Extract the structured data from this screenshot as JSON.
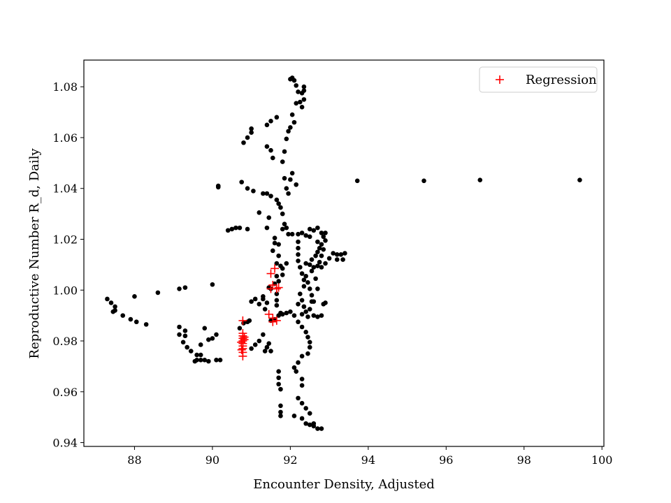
{
  "chart_data": {
    "type": "scatter",
    "title": "",
    "xlabel": "Encounter Density, Adjusted",
    "ylabel": "Reproductive Number R_d, Daily",
    "xlim": [
      86.7,
      100.05
    ],
    "ylim": [
      0.9385,
      1.0905
    ],
    "xticks": [
      88,
      90,
      92,
      94,
      96,
      98,
      100
    ],
    "yticks": [
      0.94,
      0.96,
      0.98,
      1.0,
      1.02,
      1.04,
      1.06,
      1.08
    ],
    "xtick_labels": [
      "88",
      "90",
      "92",
      "94",
      "96",
      "98",
      "100"
    ],
    "ytick_labels": [
      "0.94",
      "0.96",
      "0.98",
      "1.00",
      "1.02",
      "1.04",
      "1.06",
      "1.08"
    ],
    "grid": false,
    "legend": {
      "position": "top-right",
      "entries": [
        "Regression"
      ]
    },
    "series": [
      {
        "color": "#000000",
        "marker": "circle",
        "points": [
          [
            87.3,
            0.9965
          ],
          [
            87.4,
            0.995
          ],
          [
            87.5,
            0.9935
          ],
          [
            87.5,
            0.992
          ],
          [
            87.45,
            0.9915
          ],
          [
            87.7,
            0.99
          ],
          [
            87.9,
            0.9885
          ],
          [
            88.05,
            0.9875
          ],
          [
            88.3,
            0.9865
          ],
          [
            88.0,
            0.9975
          ],
          [
            88.6,
            0.999
          ],
          [
            89.15,
            1.0005
          ],
          [
            89.3,
            1.001
          ],
          [
            89.15,
            0.9855
          ],
          [
            89.3,
            0.984
          ],
          [
            89.15,
            0.9825
          ],
          [
            89.3,
            0.982
          ],
          [
            89.25,
            0.9795
          ],
          [
            89.35,
            0.9775
          ],
          [
            89.45,
            0.976
          ],
          [
            89.6,
            0.9745
          ],
          [
            89.7,
            0.9725
          ],
          [
            89.8,
            0.9725
          ],
          [
            89.7,
            0.9745
          ],
          [
            89.55,
            0.972
          ],
          [
            89.6,
            0.9725
          ],
          [
            89.8,
            0.985
          ],
          [
            89.9,
            0.9805
          ],
          [
            90.0,
            0.981
          ],
          [
            90.1,
            0.9825
          ],
          [
            89.7,
            0.9785
          ],
          [
            89.9,
            0.972
          ],
          [
            90.1,
            0.9725
          ],
          [
            90.2,
            0.9725
          ],
          [
            90.0,
            1.0022
          ],
          [
            90.15,
            1.041
          ],
          [
            90.15,
            1.0405
          ],
          [
            90.4,
            1.0235
          ],
          [
            90.5,
            1.024
          ],
          [
            90.6,
            1.0245
          ],
          [
            90.7,
            1.0245
          ],
          [
            90.9,
            1.024
          ],
          [
            90.75,
            1.0425
          ],
          [
            90.9,
            1.04
          ],
          [
            91.05,
            1.039
          ],
          [
            91.3,
            1.038
          ],
          [
            91.2,
            1.0305
          ],
          [
            91.4,
            1.038
          ],
          [
            91.5,
            1.037
          ],
          [
            91.45,
            1.0285
          ],
          [
            91.4,
            1.0245
          ],
          [
            90.8,
            1.058
          ],
          [
            90.9,
            1.06
          ],
          [
            91.0,
            1.062
          ],
          [
            91.0,
            1.0635
          ],
          [
            91.4,
            1.0565
          ],
          [
            91.5,
            1.055
          ],
          [
            91.55,
            1.052
          ],
          [
            91.4,
            1.065
          ],
          [
            91.5,
            1.0665
          ],
          [
            91.65,
            1.068
          ],
          [
            91.8,
            1.0505
          ],
          [
            91.85,
            1.0545
          ],
          [
            91.9,
            1.0595
          ],
          [
            91.95,
            1.0625
          ],
          [
            92.0,
            1.083
          ],
          [
            92.05,
            1.0835
          ],
          [
            92.1,
            1.0825
          ],
          [
            92.15,
            1.0805
          ],
          [
            92.2,
            1.078
          ],
          [
            92.3,
            1.0775
          ],
          [
            92.35,
            1.08
          ],
          [
            92.35,
            1.0785
          ],
          [
            92.35,
            1.075
          ],
          [
            92.3,
            1.072
          ],
          [
            92.25,
            1.074
          ],
          [
            92.15,
            1.0735
          ],
          [
            92.05,
            1.069
          ],
          [
            92.1,
            1.066
          ],
          [
            92.0,
            1.064
          ],
          [
            93.72,
            1.043
          ],
          [
            95.43,
            1.043
          ],
          [
            96.87,
            1.0433
          ],
          [
            99.43,
            1.0433
          ],
          [
            90.7,
            0.985
          ],
          [
            90.8,
            0.987
          ],
          [
            90.9,
            0.9875
          ],
          [
            90.95,
            0.988
          ],
          [
            91.0,
            0.9955
          ],
          [
            91.1,
            0.9965
          ],
          [
            91.2,
            0.9945
          ],
          [
            91.3,
            0.9975
          ],
          [
            91.35,
            0.9925
          ],
          [
            91.4,
            0.995
          ],
          [
            91.45,
            1.001
          ],
          [
            91.3,
            0.9965
          ],
          [
            91.0,
            0.977
          ],
          [
            91.1,
            0.9785
          ],
          [
            91.2,
            0.98
          ],
          [
            91.3,
            0.9825
          ],
          [
            91.35,
            0.976
          ],
          [
            91.4,
            0.9775
          ],
          [
            91.45,
            0.979
          ],
          [
            91.5,
            0.976
          ],
          [
            91.5,
            0.988
          ],
          [
            91.6,
            0.9885
          ],
          [
            91.7,
            0.99
          ],
          [
            91.75,
            0.991
          ],
          [
            91.8,
            0.9905
          ],
          [
            91.9,
            0.991
          ],
          [
            92.0,
            0.9915
          ],
          [
            92.1,
            0.99
          ],
          [
            92.2,
            0.9875
          ],
          [
            92.3,
            0.9855
          ],
          [
            92.4,
            0.9835
          ],
          [
            92.45,
            0.9815
          ],
          [
            92.5,
            0.9795
          ],
          [
            92.5,
            0.9775
          ],
          [
            92.45,
            0.975
          ],
          [
            92.3,
            0.974
          ],
          [
            92.2,
            0.9715
          ],
          [
            92.1,
            0.9695
          ],
          [
            92.15,
            0.968
          ],
          [
            91.7,
            0.968
          ],
          [
            91.7,
            0.9655
          ],
          [
            91.7,
            0.963
          ],
          [
            91.75,
            0.961
          ],
          [
            92.3,
            0.965
          ],
          [
            92.3,
            0.9625
          ],
          [
            92.2,
            0.9575
          ],
          [
            92.3,
            0.9555
          ],
          [
            92.4,
            0.9535
          ],
          [
            92.5,
            0.9515
          ],
          [
            92.6,
            0.9475
          ],
          [
            92.7,
            0.9455
          ],
          [
            92.8,
            0.9455
          ],
          [
            92.6,
            0.9465
          ],
          [
            92.5,
            0.947
          ],
          [
            92.4,
            0.9475
          ],
          [
            92.3,
            0.9495
          ],
          [
            92.1,
            0.9505
          ],
          [
            91.75,
            0.9545
          ],
          [
            91.75,
            0.952
          ],
          [
            91.75,
            0.9505
          ],
          [
            91.55,
            1.0155
          ],
          [
            91.6,
            1.0185
          ],
          [
            91.6,
            1.0205
          ],
          [
            91.7,
            1.018
          ],
          [
            91.65,
            1.0105
          ],
          [
            91.7,
            1.0135
          ],
          [
            91.65,
            1.0055
          ],
          [
            91.6,
            1.0025
          ],
          [
            91.5,
            1.0005
          ],
          [
            91.65,
            0.9985
          ],
          [
            91.65,
            0.996
          ],
          [
            91.65,
            0.994
          ],
          [
            91.7,
            1.0035
          ],
          [
            91.75,
            1.0095
          ],
          [
            91.8,
            1.0085
          ],
          [
            91.8,
            1.006
          ],
          [
            91.9,
            1.0105
          ],
          [
            91.65,
            1.0355
          ],
          [
            91.7,
            1.034
          ],
          [
            91.75,
            1.0325
          ],
          [
            91.8,
            1.03
          ],
          [
            91.85,
            1.026
          ],
          [
            91.8,
            1.024
          ],
          [
            91.9,
            1.0245
          ],
          [
            91.95,
            1.022
          ],
          [
            91.85,
            1.044
          ],
          [
            91.9,
            1.04
          ],
          [
            91.95,
            1.038
          ],
          [
            92.0,
            1.0435
          ],
          [
            92.05,
            1.046
          ],
          [
            92.15,
            1.0415
          ],
          [
            92.05,
            1.022
          ],
          [
            92.2,
            1.022
          ],
          [
            92.2,
            1.019
          ],
          [
            92.2,
            1.0165
          ],
          [
            92.2,
            1.014
          ],
          [
            92.2,
            1.0115
          ],
          [
            92.25,
            1.009
          ],
          [
            92.3,
            1.0065
          ],
          [
            92.35,
            1.004
          ],
          [
            92.35,
            1.0015
          ],
          [
            92.25,
            0.9985
          ],
          [
            92.3,
            0.996
          ],
          [
            92.35,
            0.9935
          ],
          [
            92.3,
            0.9905
          ],
          [
            92.45,
            0.9895
          ],
          [
            92.6,
            0.99
          ],
          [
            92.7,
            0.9895
          ],
          [
            92.8,
            0.99
          ],
          [
            92.85,
            0.9945
          ],
          [
            92.9,
            0.995
          ],
          [
            92.3,
            1.0225
          ],
          [
            92.4,
            1.0215
          ],
          [
            92.5,
            1.021
          ],
          [
            92.5,
            1.024
          ],
          [
            92.6,
            1.0235
          ],
          [
            92.7,
            1.0245
          ],
          [
            92.8,
            1.0225
          ],
          [
            92.9,
            1.0225
          ],
          [
            92.85,
            1.021
          ],
          [
            92.9,
            1.0195
          ],
          [
            92.8,
            1.018
          ],
          [
            92.85,
            1.016
          ],
          [
            92.8,
            1.0135
          ],
          [
            92.75,
            1.011
          ],
          [
            92.7,
            1.0095
          ],
          [
            92.5,
            1.01
          ],
          [
            92.4,
            1.0105
          ],
          [
            92.55,
            1.012
          ],
          [
            92.65,
            1.0135
          ],
          [
            92.7,
            1.015
          ],
          [
            92.75,
            1.0165
          ],
          [
            92.7,
            1.019
          ],
          [
            92.4,
            1.0055
          ],
          [
            92.45,
            1.003
          ],
          [
            92.5,
            1.0005
          ],
          [
            92.55,
            0.998
          ],
          [
            92.6,
            0.9955
          ],
          [
            92.7,
            1.0005
          ],
          [
            92.65,
            1.0045
          ],
          [
            92.55,
            1.0075
          ],
          [
            92.6,
            1.009
          ],
          [
            92.8,
            1.009
          ],
          [
            92.9,
            1.0105
          ],
          [
            93.0,
            1.0125
          ],
          [
            93.1,
            1.0145
          ],
          [
            93.2,
            1.014
          ],
          [
            93.3,
            1.014
          ],
          [
            93.4,
            1.0145
          ],
          [
            93.35,
            1.012
          ],
          [
            93.2,
            1.012
          ],
          [
            92.35,
            0.9935
          ],
          [
            92.4,
            0.9915
          ],
          [
            92.5,
            0.9925
          ],
          [
            92.55,
            0.9955
          ],
          [
            92.2,
            0.9945
          ]
        ]
      },
      {
        "name": "Regression",
        "color": "#ff0000",
        "marker": "plus",
        "points": [
          [
            90.78,
            0.974
          ],
          [
            90.78,
            0.9755
          ],
          [
            90.78,
            0.977
          ],
          [
            90.78,
            0.978
          ],
          [
            90.78,
            0.979
          ],
          [
            90.78,
            0.98
          ],
          [
            90.78,
            0.981
          ],
          [
            90.78,
            0.982
          ],
          [
            90.78,
            0.983
          ],
          [
            90.78,
            0.988
          ],
          [
            90.75,
            0.9765
          ],
          [
            90.82,
            0.9805
          ],
          [
            90.82,
            0.9815
          ],
          [
            90.74,
            0.9795
          ],
          [
            91.45,
            0.9905
          ],
          [
            91.55,
            0.989
          ],
          [
            91.65,
            0.988
          ],
          [
            91.55,
            0.9875
          ],
          [
            91.5,
            1.0005
          ],
          [
            91.55,
            1.002
          ],
          [
            91.65,
            1.0005
          ],
          [
            91.7,
            1.001
          ],
          [
            91.5,
            1.0065
          ],
          [
            91.6,
            1.0085
          ]
        ]
      }
    ]
  }
}
